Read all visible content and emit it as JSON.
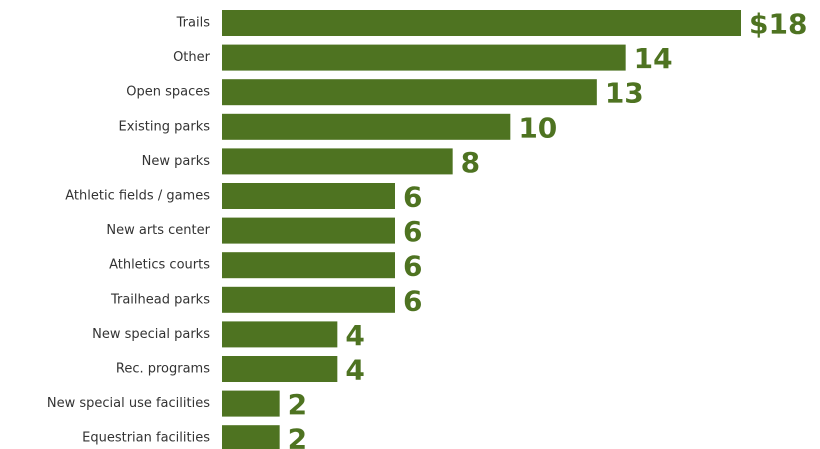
{
  "chart_data": {
    "type": "bar",
    "orientation": "horizontal",
    "categories": [
      "Trails",
      "Other",
      "Open spaces",
      "Existing parks",
      "New parks",
      "Athletic fields / games",
      "New arts center",
      "Athletics courts",
      "Trailhead parks",
      "New special parks",
      "Rec. programs",
      "New special use facilities",
      "Equestrian facilities"
    ],
    "values": [
      18,
      14,
      13,
      10,
      8,
      6,
      6,
      6,
      6,
      4,
      4,
      2,
      2
    ],
    "data_labels": [
      "$18",
      "14",
      "13",
      "10",
      "8",
      "6",
      "6",
      "6",
      "6",
      "4",
      "4",
      "2",
      "2"
    ],
    "title": "",
    "xlabel": "",
    "ylabel": "",
    "xlim": [
      0,
      18
    ],
    "grid": false,
    "legend": "none",
    "bar_color": "#4e7321",
    "label_color": "#4e7321"
  }
}
